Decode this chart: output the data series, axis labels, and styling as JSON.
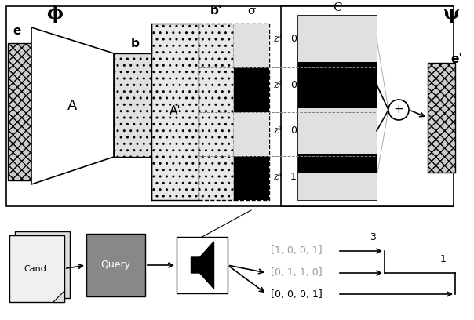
{
  "fig_width": 6.04,
  "fig_height": 4.08,
  "dpi": 100,
  "bg_color": "#ffffff",
  "phi_text": "ϕ",
  "psi_text": "ψ",
  "sigma_text": "σ",
  "z_labels": [
    "z¹",
    "z²",
    "z³",
    "z⁴"
  ],
  "z_values": [
    "0",
    "0",
    "0",
    "1"
  ],
  "vec1": "[1, 0, 0, 1]",
  "vec2": "[0, 1, 1, 0]",
  "vec3": "[0, 0, 0, 1]",
  "gray_vec_color": "#999999",
  "black_color": "#000000",
  "arr_label_3": "3",
  "arr_label_1": "1"
}
